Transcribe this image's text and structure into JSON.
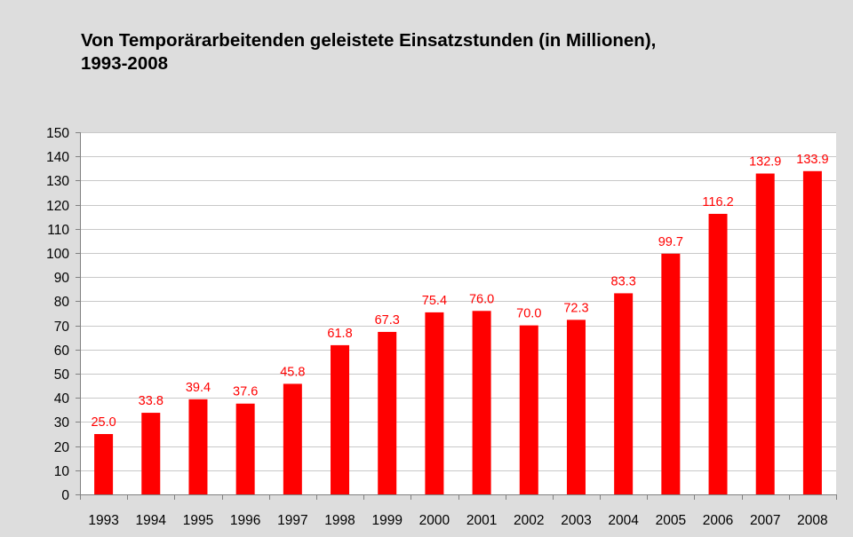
{
  "chart_data": {
    "type": "bar",
    "title_lines": [
      "Von Temporärarbeitenden geleistete Einsatzstunden (in Millionen),",
      "1993-2008"
    ],
    "xlabel": "",
    "ylabel": "",
    "categories": [
      "1993",
      "1994",
      "1995",
      "1996",
      "1997",
      "1998",
      "1999",
      "2000",
      "2001",
      "2002",
      "2003",
      "2004",
      "2005",
      "2006",
      "2007",
      "2008"
    ],
    "values": [
      25.0,
      33.8,
      39.4,
      37.6,
      45.8,
      61.8,
      67.3,
      75.4,
      76.0,
      70.0,
      72.3,
      83.3,
      99.7,
      116.2,
      132.9,
      133.9
    ],
    "data_labels": [
      "25.0",
      "33.8",
      "39.4",
      "37.6",
      "45.8",
      "61.8",
      "67.3",
      "75.4",
      "76.0",
      "70.0",
      "72.3",
      "83.3",
      "99.7",
      "116.2",
      "132.9",
      "133.9"
    ],
    "ylim": [
      0,
      150
    ],
    "yticks": [
      0,
      10,
      20,
      30,
      40,
      50,
      60,
      70,
      80,
      90,
      100,
      110,
      120,
      130,
      140,
      150
    ],
    "grid": true,
    "legend": "none",
    "colors": {
      "bar": "#ff0000",
      "data_label": "#ff0000",
      "plot_background": "#ffffff",
      "page_background": "#dddddd",
      "gridline": "#c8c8c8",
      "axis": "#808080"
    }
  }
}
